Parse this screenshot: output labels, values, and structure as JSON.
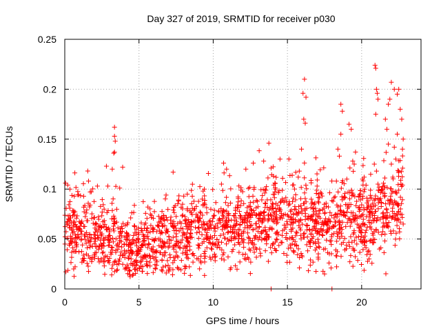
{
  "chart_data": {
    "type": "scatter",
    "title": "Day 327 of 2019, SRMTID for receiver p030",
    "xlabel": "GPS time / hours",
    "ylabel": "SRMTID / TECUs",
    "xlim": [
      0,
      24
    ],
    "ylim": [
      0,
      0.25
    ],
    "xticks": [
      0,
      5,
      10,
      15,
      20
    ],
    "xtick_labels": [
      "0",
      "5",
      "10",
      "15",
      "20"
    ],
    "yticks": [
      0,
      0.05,
      0.1,
      0.15,
      0.2,
      0.25
    ],
    "ytick_labels": [
      "0",
      "0.05",
      "0.1",
      "0.15",
      "0.2",
      "0.25"
    ],
    "grid": true,
    "marker": "+",
    "color": "#ff0000",
    "series": [
      {
        "name": "SRMTID",
        "baseline_profile": {
          "x": [
            0,
            1,
            2,
            3,
            4,
            5,
            6,
            7,
            8,
            9,
            10,
            11,
            12,
            13,
            14,
            15,
            16,
            17,
            18,
            19,
            20,
            21,
            22,
            22.8
          ],
          "y": [
            0.058,
            0.055,
            0.052,
            0.05,
            0.045,
            0.04,
            0.046,
            0.052,
            0.055,
            0.056,
            0.058,
            0.06,
            0.062,
            0.064,
            0.066,
            0.064,
            0.068,
            0.062,
            0.06,
            0.068,
            0.066,
            0.072,
            0.085,
            0.09
          ]
        },
        "points": [
          {
            "x": 3.35,
            "y": 0.162
          },
          {
            "x": 3.35,
            "y": 0.153
          },
          {
            "x": 3.4,
            "y": 0.148
          },
          {
            "x": 3.35,
            "y": 0.137
          },
          {
            "x": 3.3,
            "y": 0.136
          },
          {
            "x": 3.2,
            "y": 0.12
          },
          {
            "x": 2.9,
            "y": 0.103
          },
          {
            "x": 3.7,
            "y": 0.101
          },
          {
            "x": 3.9,
            "y": 0.122
          },
          {
            "x": 2.2,
            "y": 0.103
          },
          {
            "x": 1.6,
            "y": 0.108
          },
          {
            "x": 0.2,
            "y": 0.104
          },
          {
            "x": 0.05,
            "y": 0.106
          },
          {
            "x": 0.35,
            "y": 0.1
          },
          {
            "x": 0.6,
            "y": 0.02
          },
          {
            "x": 7.3,
            "y": 0.117
          },
          {
            "x": 5.6,
            "y": 0.082
          },
          {
            "x": 9.4,
            "y": 0.1
          },
          {
            "x": 10.7,
            "y": 0.126
          },
          {
            "x": 10.9,
            "y": 0.12
          },
          {
            "x": 12.2,
            "y": 0.12
          },
          {
            "x": 12.7,
            "y": 0.126
          },
          {
            "x": 13.4,
            "y": 0.128
          },
          {
            "x": 13.75,
            "y": 0.146
          },
          {
            "x": 13.9,
            "y": 0.121
          },
          {
            "x": 13.9,
            "y": 0.0
          },
          {
            "x": 14.5,
            "y": 0.13
          },
          {
            "x": 15.1,
            "y": 0.13
          },
          {
            "x": 16.15,
            "y": 0.21
          },
          {
            "x": 16.05,
            "y": 0.196
          },
          {
            "x": 16.25,
            "y": 0.192
          },
          {
            "x": 16.1,
            "y": 0.17
          },
          {
            "x": 16.2,
            "y": 0.166
          },
          {
            "x": 15.95,
            "y": 0.14
          },
          {
            "x": 15.8,
            "y": 0.118
          },
          {
            "x": 17.0,
            "y": 0.103
          },
          {
            "x": 17.5,
            "y": 0.015
          },
          {
            "x": 18.0,
            "y": 0.0
          },
          {
            "x": 18.3,
            "y": 0.108
          },
          {
            "x": 18.5,
            "y": 0.133
          },
          {
            "x": 18.6,
            "y": 0.185
          },
          {
            "x": 18.7,
            "y": 0.178
          },
          {
            "x": 18.6,
            "y": 0.155
          },
          {
            "x": 18.4,
            "y": 0.14
          },
          {
            "x": 19.15,
            "y": 0.165
          },
          {
            "x": 19.3,
            "y": 0.16
          },
          {
            "x": 19.4,
            "y": 0.128
          },
          {
            "x": 19.5,
            "y": 0.125
          },
          {
            "x": 19.0,
            "y": 0.11
          },
          {
            "x": 20.9,
            "y": 0.224
          },
          {
            "x": 20.95,
            "y": 0.221
          },
          {
            "x": 21.0,
            "y": 0.2
          },
          {
            "x": 21.05,
            "y": 0.196
          },
          {
            "x": 21.1,
            "y": 0.19
          },
          {
            "x": 20.95,
            "y": 0.175
          },
          {
            "x": 21.0,
            "y": 0.118
          },
          {
            "x": 21.2,
            "y": 0.04
          },
          {
            "x": 21.6,
            "y": 0.17
          },
          {
            "x": 21.8,
            "y": 0.185
          },
          {
            "x": 21.9,
            "y": 0.19
          },
          {
            "x": 22.0,
            "y": 0.207
          },
          {
            "x": 22.2,
            "y": 0.2
          },
          {
            "x": 22.4,
            "y": 0.195
          },
          {
            "x": 22.5,
            "y": 0.2
          },
          {
            "x": 22.6,
            "y": 0.18
          },
          {
            "x": 22.7,
            "y": 0.17
          },
          {
            "x": 22.8,
            "y": 0.15
          },
          {
            "x": 22.75,
            "y": 0.14
          },
          {
            "x": 22.4,
            "y": 0.155
          },
          {
            "x": 22.3,
            "y": 0.13
          },
          {
            "x": 22.2,
            "y": 0.142
          },
          {
            "x": 22.0,
            "y": 0.125
          },
          {
            "x": 21.8,
            "y": 0.145
          },
          {
            "x": 21.7,
            "y": 0.16
          },
          {
            "x": 22.1,
            "y": 0.112
          },
          {
            "x": 22.5,
            "y": 0.118
          },
          {
            "x": 22.65,
            "y": 0.105
          },
          {
            "x": 22.8,
            "y": 0.065
          },
          {
            "x": 22.6,
            "y": 0.075
          },
          {
            "x": 21.9,
            "y": 0.088
          },
          {
            "x": 21.4,
            "y": 0.1
          },
          {
            "x": 21.1,
            "y": 0.105
          },
          {
            "x": 20.2,
            "y": 0.1
          },
          {
            "x": 20.5,
            "y": 0.03
          },
          {
            "x": 17.8,
            "y": 0.026
          },
          {
            "x": 16.8,
            "y": 0.062
          },
          {
            "x": 14.2,
            "y": 0.1
          },
          {
            "x": 11.8,
            "y": 0.027
          },
          {
            "x": 11.0,
            "y": 0.032
          },
          {
            "x": 9.0,
            "y": 0.03
          },
          {
            "x": 6.8,
            "y": 0.023
          },
          {
            "x": 5.5,
            "y": 0.025
          },
          {
            "x": 4.8,
            "y": 0.028
          },
          {
            "x": 4.2,
            "y": 0.024
          },
          {
            "x": 2.6,
            "y": 0.027
          },
          {
            "x": 1.2,
            "y": 0.03
          }
        ],
        "noise_point_count": 1900
      }
    ]
  }
}
